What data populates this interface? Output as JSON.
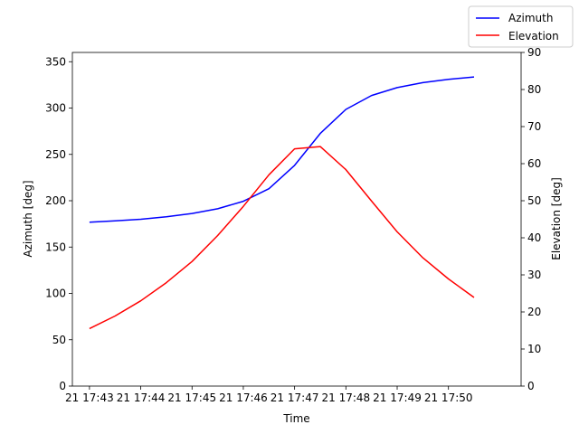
{
  "chart_data": {
    "type": "line",
    "xlabel": "Time",
    "ylabel_left": "Azimuth [deg]",
    "ylabel_right": "Elevation [deg]",
    "x_ticks": [
      "21 17:43",
      "21 17:44",
      "21 17:45",
      "21 17:46",
      "21 17:47",
      "21 17:48",
      "21 17:49",
      "21 17:50"
    ],
    "x": [
      "17:43:00",
      "17:43:30",
      "17:44:00",
      "17:44:30",
      "17:45:00",
      "17:45:30",
      "17:46:00",
      "17:46:30",
      "17:47:00",
      "17:47:30",
      "17:48:00",
      "17:48:30",
      "17:49:00",
      "17:49:30",
      "17:50:00",
      "17:50:30"
    ],
    "xlim": [
      "17:42:40",
      "17:51:25"
    ],
    "ylim_left": [
      0,
      360
    ],
    "yticks_left": [
      0,
      50,
      100,
      150,
      200,
      250,
      300,
      350
    ],
    "ylim_right": [
      0,
      90
    ],
    "yticks_right": [
      0,
      10,
      20,
      30,
      40,
      50,
      60,
      70,
      80,
      90
    ],
    "series": [
      {
        "name": "Azimuth",
        "axis": "left",
        "color": "#0000ff",
        "values": [
          176.8,
          178.2,
          180.0,
          182.6,
          186.2,
          191.3,
          199.4,
          213.0,
          238.1,
          272.6,
          298.5,
          313.6,
          322.0,
          327.4,
          331.0,
          333.6
        ]
      },
      {
        "name": "Elevation",
        "axis": "right",
        "color": "#ff0000",
        "values": [
          15.5,
          18.9,
          23.0,
          27.9,
          33.6,
          40.6,
          48.5,
          57.0,
          64.0,
          64.6,
          58.4,
          49.9,
          41.6,
          34.6,
          28.9,
          23.9
        ]
      }
    ],
    "legend": "top-right",
    "grid": false
  }
}
